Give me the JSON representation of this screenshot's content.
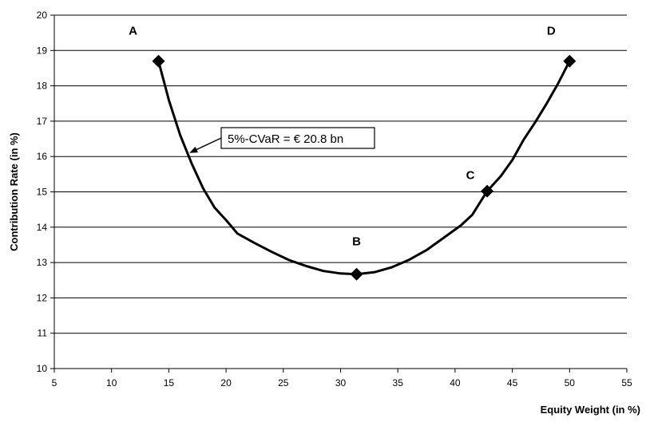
{
  "chart_data": {
    "type": "line",
    "title": "",
    "xlabel": "Equity Weight (in %)",
    "ylabel": "Contribution Rate (in %)",
    "xlim": [
      5,
      55
    ],
    "ylim": [
      10,
      20
    ],
    "x_ticks": [
      5,
      10,
      15,
      20,
      25,
      30,
      35,
      40,
      45,
      50,
      55
    ],
    "y_ticks": [
      10,
      11,
      12,
      13,
      14,
      15,
      16,
      17,
      18,
      19,
      20
    ],
    "grid": "horizontal",
    "series": [
      {
        "x": [
          14.1,
          15.0,
          16.0,
          17.0,
          18.0,
          19.0,
          20.0,
          21.0,
          22.5,
          24.0,
          25.5,
          27.0,
          28.5,
          30.0,
          31.4,
          33.0,
          34.5,
          36.0,
          37.5,
          39.0,
          40.5,
          41.5,
          42.8,
          44.0,
          45.0,
          46.0,
          47.0,
          48.0,
          49.0,
          50.0
        ],
        "y": [
          18.7,
          17.6,
          16.6,
          15.8,
          15.1,
          14.55,
          14.2,
          13.82,
          13.55,
          13.3,
          13.07,
          12.9,
          12.76,
          12.69,
          12.67,
          12.73,
          12.87,
          13.08,
          13.35,
          13.7,
          14.05,
          14.35,
          15.02,
          15.45,
          15.9,
          16.48,
          16.97,
          17.5,
          18.07,
          18.7
        ]
      }
    ],
    "markers": [
      {
        "label": "A",
        "x": 14.1,
        "y": 18.7
      },
      {
        "label": "B",
        "x": 31.4,
        "y": 12.67
      },
      {
        "label": "C",
        "x": 42.8,
        "y": 15.02
      },
      {
        "label": "D",
        "x": 50.0,
        "y": 18.7
      }
    ],
    "annotation": {
      "text": "5%-CVaR = € 20.8 bn",
      "points_to": {
        "x": 16.8,
        "y": 16.1
      }
    }
  }
}
